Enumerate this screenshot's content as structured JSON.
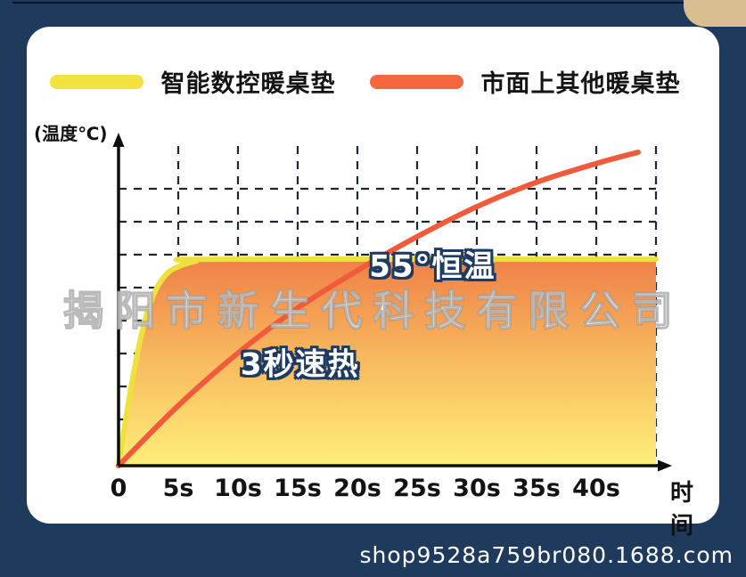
{
  "header": {
    "legend": [
      {
        "label": "智能数控暖桌垫",
        "color": "#f2e240"
      },
      {
        "label": "市面上其他暖桌垫",
        "color": "#f4673e"
      }
    ]
  },
  "watermark": "揭阳市新生代科技有限公司",
  "footer": {
    "url": "shop9528a759br080.1688.com"
  },
  "chart_data": {
    "type": "line",
    "title": "",
    "xlabel": "时间",
    "ylabel": "(温度℃)",
    "x_ticks": [
      "0",
      "5s",
      "10s",
      "15s",
      "20s",
      "25s",
      "30s",
      "35s",
      "40s"
    ],
    "x_tick_seconds": [
      0,
      5,
      10,
      15,
      20,
      25,
      30,
      35,
      40
    ],
    "xlim": [
      0,
      45
    ],
    "ylim": [
      0,
      88
    ],
    "grid": true,
    "legend_position": "top",
    "annotations": [
      {
        "text": "55°恒温",
        "x": 26.3,
        "y": 53.8
      },
      {
        "text": "3秒速热",
        "x": 15.2,
        "y": 27.7
      }
    ],
    "series": [
      {
        "name": "智能数控暖桌垫",
        "color": "#efe13d",
        "fill_gradient": [
          "#ef8048",
          "#f8bb5f",
          "#ffee79"
        ],
        "points": [
          [
            0,
            0
          ],
          [
            1,
            20
          ],
          [
            2,
            36
          ],
          [
            3,
            46
          ],
          [
            4,
            51
          ],
          [
            5,
            53
          ],
          [
            6.5,
            54.5
          ],
          [
            8,
            55
          ],
          [
            45,
            55
          ]
        ]
      },
      {
        "name": "市面上其他暖桌垫",
        "color": "#f15b3b",
        "points": [
          [
            0,
            0
          ],
          [
            5,
            16
          ],
          [
            10,
            30
          ],
          [
            15,
            42
          ],
          [
            20,
            52
          ],
          [
            25,
            61
          ],
          [
            30,
            69
          ],
          [
            35,
            75.5
          ],
          [
            40,
            80.5
          ],
          [
            43.5,
            83.5
          ]
        ]
      }
    ]
  }
}
